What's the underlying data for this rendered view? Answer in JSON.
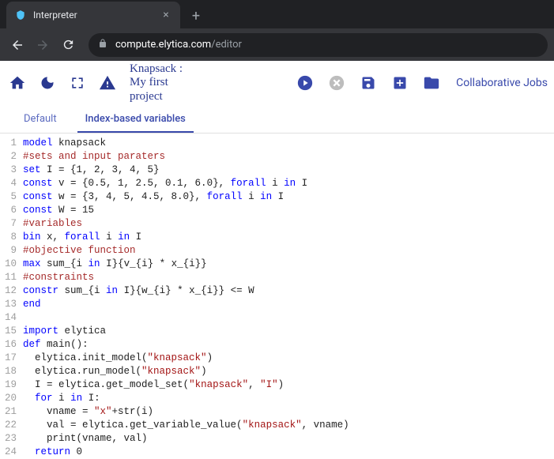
{
  "browser": {
    "tab_title": "Interpreter",
    "url_domain": "compute.elytica.com",
    "url_path": "/editor"
  },
  "toolbar": {
    "project_line1": "Knapsack :",
    "project_line2": "My first",
    "project_line3": "project",
    "collab_label": "Collaborative Jobs",
    "icon_colors": {
      "primary": "#2a3990",
      "accent": "#3949ab",
      "muted": "#bdbdbd"
    }
  },
  "tabs": {
    "items": [
      {
        "label": "Default",
        "active": false
      },
      {
        "label": "Index-based variables",
        "active": true
      }
    ]
  },
  "code": {
    "lines": [
      {
        "n": 1,
        "tokens": [
          [
            "kw",
            "model"
          ],
          [
            "id",
            " knapsack"
          ]
        ]
      },
      {
        "n": 2,
        "tokens": [
          [
            "cm",
            "#sets and input paraters"
          ]
        ]
      },
      {
        "n": 3,
        "tokens": [
          [
            "kw",
            "set"
          ],
          [
            "id",
            " I = {1, 2, 3, 4, 5}"
          ]
        ]
      },
      {
        "n": 4,
        "tokens": [
          [
            "kw",
            "const"
          ],
          [
            "id",
            " v = {0.5, 1, 2.5, 0.1, 6.0}, "
          ],
          [
            "kw",
            "forall"
          ],
          [
            "id",
            " i "
          ],
          [
            "kw",
            "in"
          ],
          [
            "id",
            " I"
          ]
        ]
      },
      {
        "n": 5,
        "tokens": [
          [
            "kw",
            "const"
          ],
          [
            "id",
            " w = {3, 4, 5, 4.5, 8.0}, "
          ],
          [
            "kw",
            "forall"
          ],
          [
            "id",
            " i "
          ],
          [
            "kw",
            "in"
          ],
          [
            "id",
            " I"
          ]
        ]
      },
      {
        "n": 6,
        "tokens": [
          [
            "kw",
            "const"
          ],
          [
            "id",
            " W = 15"
          ]
        ]
      },
      {
        "n": 7,
        "tokens": [
          [
            "cm",
            "#variables"
          ]
        ]
      },
      {
        "n": 8,
        "tokens": [
          [
            "kw",
            "bin"
          ],
          [
            "id",
            " x, "
          ],
          [
            "kw",
            "forall"
          ],
          [
            "id",
            " i "
          ],
          [
            "kw",
            "in"
          ],
          [
            "id",
            " I"
          ]
        ]
      },
      {
        "n": 9,
        "tokens": [
          [
            "cm",
            "#objective function"
          ]
        ]
      },
      {
        "n": 10,
        "tokens": [
          [
            "kw",
            "max"
          ],
          [
            "id",
            " sum_{i "
          ],
          [
            "kw",
            "in"
          ],
          [
            "id",
            " I}{v_{i} * x_{i}}"
          ]
        ]
      },
      {
        "n": 11,
        "tokens": [
          [
            "cm",
            "#constraints"
          ]
        ]
      },
      {
        "n": 12,
        "tokens": [
          [
            "kw",
            "constr"
          ],
          [
            "id",
            " sum_{i "
          ],
          [
            "kw",
            "in"
          ],
          [
            "id",
            " I}{w_{i} * x_{i}} <= W"
          ]
        ]
      },
      {
        "n": 13,
        "tokens": [
          [
            "kw",
            "end"
          ]
        ]
      },
      {
        "n": 14,
        "tokens": [
          [
            "id",
            ""
          ]
        ]
      },
      {
        "n": 15,
        "tokens": [
          [
            "kw",
            "import"
          ],
          [
            "id",
            " elytica"
          ]
        ]
      },
      {
        "n": 16,
        "tokens": [
          [
            "kw",
            "def"
          ],
          [
            "id",
            " "
          ],
          [
            "fn",
            "main"
          ],
          [
            "id",
            "():"
          ]
        ]
      },
      {
        "n": 17,
        "tokens": [
          [
            "id",
            "  elytica.init_model("
          ],
          [
            "str",
            "\"knapsack\""
          ],
          [
            "id",
            ")"
          ]
        ]
      },
      {
        "n": 18,
        "tokens": [
          [
            "id",
            "  elytica.run_model("
          ],
          [
            "str",
            "\"knapsack\""
          ],
          [
            "id",
            ")"
          ]
        ]
      },
      {
        "n": 19,
        "tokens": [
          [
            "id",
            "  I = elytica.get_model_set("
          ],
          [
            "str",
            "\"knapsack\""
          ],
          [
            "id",
            ", "
          ],
          [
            "str",
            "\"I\""
          ],
          [
            "id",
            ")"
          ]
        ]
      },
      {
        "n": 20,
        "tokens": [
          [
            "id",
            "  "
          ],
          [
            "kw",
            "for"
          ],
          [
            "id",
            " i "
          ],
          [
            "kw",
            "in"
          ],
          [
            "id",
            " I:"
          ]
        ]
      },
      {
        "n": 21,
        "tokens": [
          [
            "id",
            "    vname = "
          ],
          [
            "str",
            "\"x\""
          ],
          [
            "id",
            "+str(i)"
          ]
        ]
      },
      {
        "n": 22,
        "tokens": [
          [
            "id",
            "    val = elytica.get_variable_value("
          ],
          [
            "str",
            "\"knapsack\""
          ],
          [
            "id",
            ", vname)"
          ]
        ]
      },
      {
        "n": 23,
        "tokens": [
          [
            "id",
            "    print(vname, val)"
          ]
        ]
      },
      {
        "n": 24,
        "tokens": [
          [
            "id",
            "  "
          ],
          [
            "kw",
            "return"
          ],
          [
            "id",
            " 0"
          ]
        ]
      }
    ]
  }
}
